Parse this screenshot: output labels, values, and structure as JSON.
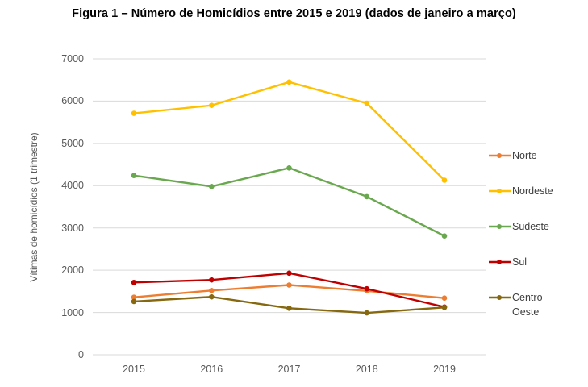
{
  "figure": {
    "title": "Figura 1 – Número de Homicídios entre 2015 e 2019 (dados de janeiro a março)"
  },
  "colors": {
    "grid": "#D9D9D9",
    "tick_text": "#595959",
    "legend_text": "#404040",
    "title_text": "#000000"
  },
  "chart_data": {
    "type": "line",
    "title": "Figura 1 – Número de Homicídios entre 2015 e 2019 (dados de janeiro a março)",
    "xlabel": "",
    "ylabel": "Vítimas de homicídios (1 trimestre)",
    "categories": [
      "2015",
      "2016",
      "2017",
      "2018",
      "2019"
    ],
    "y_ticks": [
      0,
      1000,
      2000,
      3000,
      4000,
      5000,
      6000,
      7000
    ],
    "ylim": [
      0,
      7000
    ],
    "grid": "horizontal",
    "legend_position": "right",
    "markers": "circle",
    "series": [
      {
        "name": "Norte",
        "color": "#ED7D31",
        "values": [
          1360,
          1520,
          1650,
          1510,
          1340
        ]
      },
      {
        "name": "Nordeste",
        "color": "#FFC000",
        "values": [
          5710,
          5900,
          6450,
          5950,
          4130
        ]
      },
      {
        "name": "Sudeste",
        "color": "#6AA84F",
        "values": [
          4240,
          3980,
          4420,
          3740,
          2810
        ]
      },
      {
        "name": "Sul",
        "color": "#C00000",
        "values": [
          1710,
          1770,
          1930,
          1560,
          1130
        ]
      },
      {
        "name": "Centro-Oeste",
        "color": "#85680F",
        "values": [
          1260,
          1370,
          1100,
          990,
          1120
        ]
      }
    ]
  }
}
